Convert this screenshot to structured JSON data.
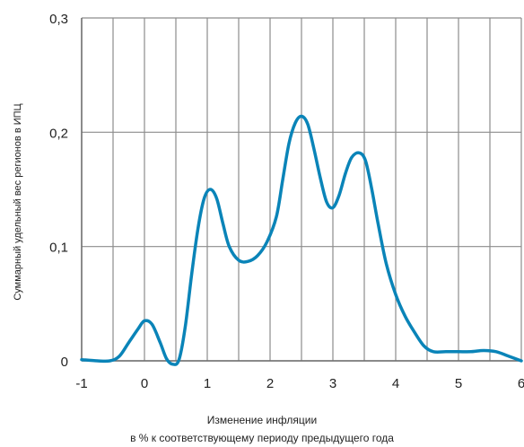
{
  "chart_data": {
    "type": "line",
    "xlabel": "Изменение инфляции",
    "xlabel_line2": "в % к соответствующему периоду предыдущего года",
    "ylabel": "Суммарный удельный вес регионов в ИПЦ",
    "xlim": [
      -1,
      6
    ],
    "ylim": [
      0,
      0.3
    ],
    "x_ticks": [
      "-1",
      "0",
      "1",
      "2",
      "3",
      "4",
      "5",
      "6"
    ],
    "y_ticks": [
      "0",
      "0,1",
      "0,2",
      "0,3"
    ],
    "grid": true,
    "x_minor_step": 0.5,
    "line_color": "#0a84b8",
    "series": [
      {
        "points": [
          [
            -1.0,
            0.001
          ],
          [
            -0.75,
            0.0
          ],
          [
            -0.55,
            0.0
          ],
          [
            -0.4,
            0.004
          ],
          [
            -0.25,
            0.016
          ],
          [
            -0.1,
            0.028
          ],
          [
            0.0,
            0.035
          ],
          [
            0.12,
            0.032
          ],
          [
            0.25,
            0.016
          ],
          [
            0.35,
            0.002
          ],
          [
            0.45,
            -0.003
          ],
          [
            0.55,
            0.001
          ],
          [
            0.65,
            0.03
          ],
          [
            0.75,
            0.075
          ],
          [
            0.85,
            0.115
          ],
          [
            0.95,
            0.142
          ],
          [
            1.05,
            0.15
          ],
          [
            1.15,
            0.142
          ],
          [
            1.25,
            0.12
          ],
          [
            1.35,
            0.1
          ],
          [
            1.5,
            0.088
          ],
          [
            1.65,
            0.087
          ],
          [
            1.8,
            0.092
          ],
          [
            1.95,
            0.104
          ],
          [
            2.1,
            0.126
          ],
          [
            2.2,
            0.158
          ],
          [
            2.3,
            0.19
          ],
          [
            2.4,
            0.208
          ],
          [
            2.5,
            0.214
          ],
          [
            2.6,
            0.207
          ],
          [
            2.7,
            0.185
          ],
          [
            2.8,
            0.16
          ],
          [
            2.9,
            0.139
          ],
          [
            3.0,
            0.134
          ],
          [
            3.1,
            0.145
          ],
          [
            3.2,
            0.164
          ],
          [
            3.3,
            0.178
          ],
          [
            3.42,
            0.182
          ],
          [
            3.52,
            0.175
          ],
          [
            3.62,
            0.15
          ],
          [
            3.72,
            0.12
          ],
          [
            3.85,
            0.085
          ],
          [
            4.0,
            0.058
          ],
          [
            4.15,
            0.039
          ],
          [
            4.3,
            0.025
          ],
          [
            4.45,
            0.013
          ],
          [
            4.6,
            0.008
          ],
          [
            4.8,
            0.008
          ],
          [
            5.0,
            0.008
          ],
          [
            5.2,
            0.008
          ],
          [
            5.4,
            0.009
          ],
          [
            5.6,
            0.008
          ],
          [
            5.8,
            0.004
          ],
          [
            6.0,
            0.0
          ]
        ]
      }
    ]
  }
}
